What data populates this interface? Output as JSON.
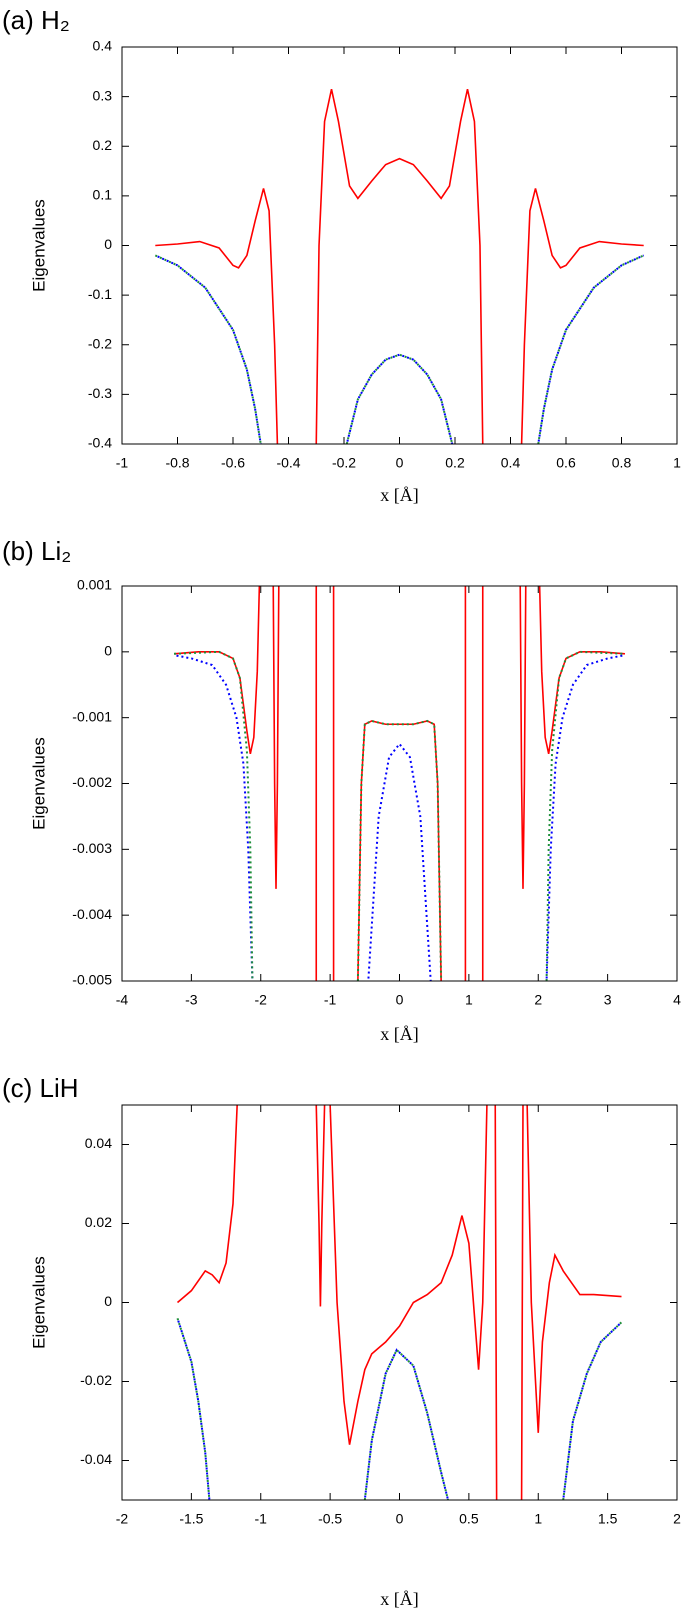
{
  "chart_data": [
    {
      "type": "line",
      "title": "(a) H₂",
      "x_label": "x [Å]",
      "y_label": "Eigenvalues",
      "xlim": [
        -1,
        1
      ],
      "ylim": [
        -0.4,
        0.4
      ],
      "xticks": [
        -1,
        -0.8,
        -0.6,
        -0.4,
        -0.2,
        0,
        0.2,
        0.4,
        0.6,
        0.8,
        1
      ],
      "yticks": [
        -0.4,
        -0.3,
        -0.2,
        -0.1,
        0,
        0.1,
        0.2,
        0.3,
        0.4
      ],
      "series": [
        {
          "color": "#ff0000",
          "line_style": "solid",
          "x": [
            -0.88,
            -0.8,
            -0.72,
            -0.65,
            -0.6,
            -0.58,
            -0.55,
            -0.52,
            -0.49,
            -0.47,
            -0.45,
            -0.44,
            -0.37,
            -0.3,
            -0.29,
            -0.27,
            -0.245,
            -0.22,
            -0.18,
            -0.15,
            -0.1,
            -0.05,
            0,
            0.05,
            0.1,
            0.15,
            0.18,
            0.22,
            0.245,
            0.27,
            0.29,
            0.3,
            0.37,
            0.44,
            0.45,
            0.47,
            0.49,
            0.52,
            0.55,
            0.58,
            0.6,
            0.65,
            0.72,
            0.8,
            0.88
          ],
          "values": [
            0,
            0.003,
            0.008,
            -0.005,
            -0.04,
            -0.045,
            -0.02,
            0.05,
            0.115,
            0.07,
            -0.2,
            -0.4,
            null,
            -0.4,
            0,
            0.25,
            0.315,
            0.25,
            0.12,
            0.095,
            0.13,
            0.163,
            0.175,
            0.163,
            0.13,
            0.095,
            0.12,
            0.25,
            0.315,
            0.25,
            0,
            -0.4,
            null,
            -0.4,
            -0.2,
            0.07,
            0.115,
            0.05,
            -0.02,
            -0.045,
            -0.04,
            -0.005,
            0.008,
            0.003,
            0
          ]
        },
        {
          "color": "#0000ff",
          "line_style": "dotted",
          "x": [
            -0.88,
            -0.8,
            -0.7,
            -0.6,
            -0.55,
            -0.52,
            -0.5,
            -0.35,
            -0.19,
            -0.15,
            -0.1,
            -0.05,
            0,
            0.05,
            0.1,
            0.15,
            0.19,
            0.35,
            0.5,
            0.52,
            0.55,
            0.6,
            0.7,
            0.8,
            0.88
          ],
          "values": [
            -0.02,
            -0.04,
            -0.085,
            -0.17,
            -0.25,
            -0.33,
            -0.4,
            null,
            -0.4,
            -0.31,
            -0.26,
            -0.23,
            -0.22,
            -0.23,
            -0.26,
            -0.31,
            -0.4,
            null,
            -0.4,
            -0.33,
            -0.25,
            -0.17,
            -0.085,
            -0.04,
            -0.02
          ]
        },
        {
          "color": "#1f8f3a",
          "line_style": "dotted",
          "x": [
            -0.88,
            -0.8,
            -0.7,
            -0.6,
            -0.55,
            -0.52,
            -0.5,
            -0.35,
            -0.19,
            -0.15,
            -0.1,
            -0.05,
            0,
            0.05,
            0.1,
            0.15,
            0.19,
            0.35,
            0.5,
            0.52,
            0.55,
            0.6,
            0.7,
            0.8,
            0.88
          ],
          "values": [
            -0.02,
            -0.04,
            -0.085,
            -0.17,
            -0.25,
            -0.33,
            -0.4,
            null,
            -0.4,
            -0.31,
            -0.26,
            -0.23,
            -0.22,
            -0.23,
            -0.26,
            -0.31,
            -0.4,
            null,
            -0.4,
            -0.33,
            -0.25,
            -0.17,
            -0.085,
            -0.04,
            -0.02
          ]
        }
      ]
    },
    {
      "type": "line",
      "title": "(b) Li₂",
      "x_label": "x [Å]",
      "y_label": "Eigenvalues",
      "xlim": [
        -4,
        4
      ],
      "ylim": [
        -0.005,
        0.001
      ],
      "xticks": [
        -4,
        -3,
        -2,
        -1,
        0,
        1,
        2,
        3,
        4
      ],
      "yticks": [
        -0.005,
        -0.004,
        -0.003,
        -0.002,
        -0.001,
        0,
        0.001
      ],
      "series": [
        {
          "color": "#ff0000",
          "line_style": "solid",
          "x": [
            -3.25,
            -2.9,
            -2.6,
            -2.4,
            -2.3,
            -2.2,
            -2.15,
            -2.1,
            -2.05,
            -2.02,
            -1.95,
            -1.82,
            -1.8,
            -1.78,
            -1.76,
            -1.74,
            -1.5,
            -1.2,
            -1.2,
            -1.1,
            -0.95,
            -0.95,
            -0.8,
            -0.6,
            -0.55,
            -0.5,
            -0.4,
            -0.2,
            0,
            0.2,
            0.4,
            0.5,
            0.55,
            0.6,
            0.8,
            0.95,
            0.95,
            1.1,
            1.2,
            1.2,
            1.5,
            1.74,
            1.76,
            1.78,
            1.8,
            1.82,
            1.95,
            2.02,
            2.05,
            2.1,
            2.15,
            2.2,
            2.3,
            2.4,
            2.6,
            2.9,
            3.25
          ],
          "values": [
            -3e-05,
            0,
            0,
            -0.0001,
            -0.0004,
            -0.0012,
            -0.00155,
            -0.0013,
            -0.0003,
            0.001,
            null,
            0.001,
            -0.002,
            -0.0036,
            -0.002,
            0.001,
            null,
            0.001,
            -0.005,
            null,
            -0.005,
            0.001,
            null,
            -0.005,
            -0.002,
            -0.0011,
            -0.00105,
            -0.0011,
            -0.0011,
            -0.0011,
            -0.00105,
            -0.0011,
            -0.002,
            -0.005,
            null,
            0.001,
            -0.005,
            null,
            -0.005,
            0.001,
            null,
            0.001,
            -0.002,
            -0.0036,
            -0.002,
            0.001,
            null,
            0.001,
            -0.0003,
            -0.0013,
            -0.00155,
            -0.0012,
            -0.0004,
            -0.0001,
            0,
            0,
            -3e-05
          ]
        },
        {
          "color": "#0000ff",
          "line_style": "dotted",
          "x": [
            -3.25,
            -3,
            -2.7,
            -2.5,
            -2.35,
            -2.25,
            -2.18,
            -2.12,
            -1.5,
            -0.45,
            -0.3,
            -0.15,
            0,
            0.15,
            0.3,
            0.45,
            1.5,
            2.12,
            2.18,
            2.25,
            2.35,
            2.5,
            2.7,
            3,
            3.25
          ],
          "values": [
            -5e-05,
            -0.0001,
            -0.0002,
            -0.0005,
            -0.001,
            -0.0017,
            -0.003,
            -0.005,
            null,
            -0.005,
            -0.0025,
            -0.0016,
            -0.0014,
            -0.0016,
            -0.0025,
            -0.005,
            null,
            -0.005,
            -0.003,
            -0.0017,
            -0.001,
            -0.0005,
            -0.0002,
            -0.0001,
            -5e-05
          ]
        },
        {
          "color": "#1f8f3a",
          "line_style": "dotted",
          "x": [
            -3.25,
            -2.6,
            -2.4,
            -2.3,
            -2.2,
            -2.15,
            -2.12,
            -1.5,
            -0.6,
            -0.55,
            -0.5,
            -0.4,
            -0.2,
            0,
            0.2,
            0.4,
            0.5,
            0.55,
            0.6,
            1.5,
            2.12,
            2.15,
            2.2,
            2.3,
            2.4,
            2.6,
            3.25
          ],
          "values": [
            -3e-05,
            0,
            -0.0001,
            -0.0004,
            -0.0015,
            -0.003,
            -0.005,
            null,
            -0.005,
            -0.002,
            -0.0011,
            -0.00105,
            -0.0011,
            -0.0011,
            -0.0011,
            -0.00105,
            -0.0011,
            -0.002,
            -0.005,
            null,
            -0.005,
            -0.003,
            -0.0015,
            -0.0004,
            -0.0001,
            0,
            -3e-05
          ]
        }
      ]
    },
    {
      "type": "line",
      "title": "(c) LiH",
      "x_label": "x [Å]",
      "y_label": "Eigenvalues",
      "xlim": [
        -2,
        2
      ],
      "ylim": [
        -0.05,
        0.05
      ],
      "xticks": [
        -2,
        -1.5,
        -1,
        -0.5,
        0,
        0.5,
        1,
        1.5,
        2
      ],
      "yticks": [
        -0.04,
        -0.02,
        0,
        0.02,
        0.04
      ],
      "series": [
        {
          "color": "#ff0000",
          "line_style": "solid",
          "x": [
            -1.6,
            -1.5,
            -1.4,
            -1.35,
            -1.3,
            -1.25,
            -1.2,
            -1.17,
            -0.9,
            -0.6,
            -0.58,
            -0.57,
            -0.56,
            -0.54,
            -0.52,
            -0.5,
            -0.45,
            -0.4,
            -0.36,
            -0.3,
            -0.25,
            -0.2,
            -0.1,
            0,
            0.1,
            0.2,
            0.3,
            0.38,
            0.45,
            0.5,
            0.57,
            0.6,
            0.63,
            0.66,
            0.69,
            0.7,
            0.8,
            0.88,
            0.89,
            0.905,
            0.92,
            0.95,
            1,
            1.03,
            1.08,
            1.12,
            1.18,
            1.3,
            1.4,
            1.6
          ],
          "values": [
            0,
            0.003,
            0.008,
            0.007,
            0.005,
            0.01,
            0.025,
            0.05,
            null,
            0.05,
            0.02,
            -0.001,
            0.02,
            0.05,
            null,
            0.05,
            0,
            -0.025,
            -0.036,
            -0.025,
            -0.017,
            -0.013,
            -0.01,
            -0.006,
            0,
            0.002,
            0.005,
            0.012,
            0.022,
            0.015,
            -0.017,
            0,
            0.05,
            null,
            0.05,
            -0.05,
            null,
            -0.05,
            0.05,
            null,
            0.05,
            0,
            -0.033,
            -0.01,
            0.005,
            0.012,
            0.008,
            0.002,
            0.002,
            0.0015
          ]
        },
        {
          "color": "#0000ff",
          "line_style": "dotted",
          "x": [
            -1.6,
            -1.5,
            -1.45,
            -1.4,
            -1.37,
            -0.8,
            -0.25,
            -0.2,
            -0.1,
            -0.02,
            0.1,
            0.2,
            0.3,
            0.35,
            0.8,
            1.18,
            1.25,
            1.35,
            1.45,
            1.6
          ],
          "values": [
            -0.004,
            -0.015,
            -0.025,
            -0.038,
            -0.05,
            null,
            -0.05,
            -0.035,
            -0.018,
            -0.012,
            -0.016,
            -0.028,
            -0.043,
            -0.05,
            null,
            -0.05,
            -0.03,
            -0.018,
            -0.01,
            -0.005
          ]
        },
        {
          "color": "#1f8f3a",
          "line_style": "dotted",
          "x": [
            -1.6,
            -1.5,
            -1.45,
            -1.4,
            -1.37,
            -0.8,
            -0.25,
            -0.2,
            -0.1,
            -0.02,
            0.1,
            0.2,
            0.3,
            0.35,
            0.8,
            1.18,
            1.25,
            1.35,
            1.45,
            1.6
          ],
          "values": [
            -0.004,
            -0.015,
            -0.025,
            -0.038,
            -0.05,
            null,
            -0.05,
            -0.035,
            -0.018,
            -0.012,
            -0.016,
            -0.028,
            -0.043,
            -0.05,
            null,
            -0.05,
            -0.03,
            -0.018,
            -0.01,
            -0.005
          ]
        }
      ]
    }
  ]
}
